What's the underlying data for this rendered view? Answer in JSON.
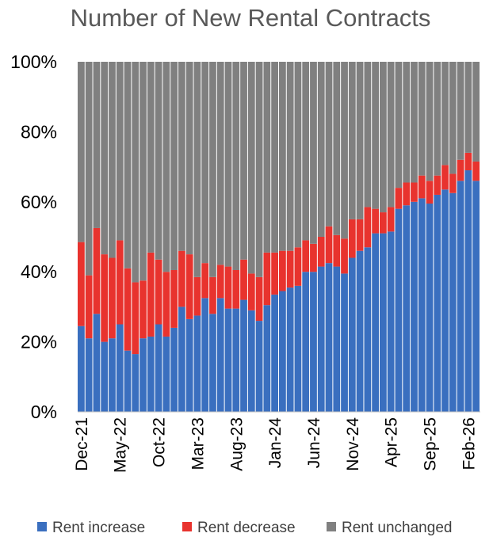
{
  "chart_data": {
    "type": "bar",
    "stacked": true,
    "normalized": true,
    "title": "Number of New Rental Contracts",
    "xlabel": "",
    "ylabel": "",
    "ylim": [
      0,
      100
    ],
    "yticks": [
      "0%",
      "20%",
      "40%",
      "60%",
      "80%",
      "100%"
    ],
    "xtick_labels": [
      "Dec-21",
      "May-22",
      "Oct-22",
      "Mar-23",
      "Aug-23",
      "Jan-24",
      "Jun-24",
      "Nov-24",
      "Apr-25",
      "Sep-25",
      "Feb-26"
    ],
    "categories": [
      "Dec-21",
      "Jan-22",
      "Feb-22",
      "Mar-22",
      "Apr-22",
      "May-22",
      "Jun-22",
      "Jul-22",
      "Aug-22",
      "Sep-22",
      "Oct-22",
      "Nov-22",
      "Dec-22",
      "Jan-23",
      "Feb-23",
      "Mar-23",
      "Apr-23",
      "May-23",
      "Jun-23",
      "Jul-23",
      "Aug-23",
      "Sep-23",
      "Oct-23",
      "Nov-23",
      "Dec-23",
      "Jan-24",
      "Feb-24",
      "Mar-24",
      "Apr-24",
      "May-24",
      "Jun-24",
      "Jul-24",
      "Aug-24",
      "Sep-24",
      "Oct-24",
      "Nov-24",
      "Dec-24",
      "Jan-25",
      "Feb-25",
      "Mar-25",
      "Apr-25",
      "May-25",
      "Jun-25",
      "Jul-25",
      "Aug-25",
      "Sep-25",
      "Oct-25",
      "Nov-25",
      "Dec-25",
      "Jan-26",
      "Feb-26",
      "Mar-26"
    ],
    "series": [
      {
        "name": "Rent increase",
        "color": "#3a6fbf",
        "values": [
          24.5,
          21,
          28,
          20,
          21,
          25,
          17.5,
          16.5,
          21,
          21.5,
          25,
          21.5,
          24,
          30,
          26.5,
          27.5,
          32.5,
          28,
          32.5,
          29.5,
          29.5,
          32,
          29,
          26,
          30.5,
          33.5,
          34.5,
          35.5,
          36,
          40,
          40,
          41.5,
          42.5,
          41.5,
          39.5,
          44,
          46,
          47,
          51,
          51,
          51.5,
          58,
          59,
          60,
          61,
          59.5,
          62,
          63.5,
          62.5,
          66,
          69,
          66
        ]
      },
      {
        "name": "Rent decrease",
        "color": "#e8332e",
        "values": [
          24,
          18,
          24.5,
          25,
          23,
          24,
          23.5,
          20.5,
          16.5,
          24,
          18.5,
          18.5,
          16.5,
          16,
          18.5,
          11,
          10,
          10.5,
          9.5,
          12,
          11,
          11.5,
          10.5,
          12.5,
          15,
          12,
          11.5,
          10.5,
          11,
          9,
          8,
          8.5,
          10.5,
          9,
          10,
          11,
          9,
          11.5,
          7,
          6,
          7,
          6,
          6.5,
          5.5,
          6.5,
          6.5,
          5.5,
          7,
          5.5,
          6,
          5,
          5.5
        ]
      },
      {
        "name": "Rent unchanged",
        "color": "#808080",
        "values": [
          51.5,
          61,
          47.5,
          55,
          56,
          51,
          59,
          63,
          62.5,
          54.5,
          56.5,
          60,
          59.5,
          54,
          55,
          61.5,
          57.5,
          61.5,
          58,
          58.5,
          59.5,
          56.5,
          60.5,
          61.5,
          54.5,
          54.5,
          54,
          54,
          53,
          51,
          52,
          50,
          47,
          49.5,
          50.5,
          45,
          45,
          41.5,
          42,
          43,
          41.5,
          36,
          34.5,
          34.5,
          32.5,
          34,
          32.5,
          29.5,
          32,
          28,
          26,
          28.5
        ]
      }
    ],
    "legend_position": "bottom",
    "grid": false
  }
}
